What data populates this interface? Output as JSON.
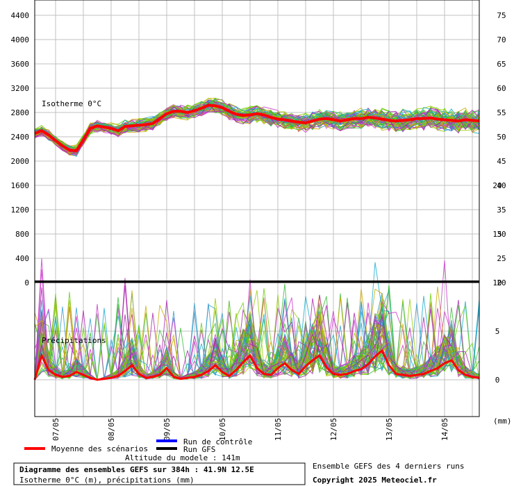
{
  "chart_data": [
    {
      "type": "line",
      "panel": "isotherm",
      "label": "Isotherme 0°C",
      "ylabel_left_ticks": [
        "0",
        "400",
        "800",
        "1200",
        "1600",
        "2000",
        "2400",
        "2800",
        "3200",
        "3600",
        "4000",
        "4400"
      ],
      "ylabel_right_ticks": [
        "20",
        "25",
        "30",
        "35",
        "40",
        "45",
        "50",
        "55",
        "60",
        "65",
        "70",
        "75"
      ],
      "ylim": [
        0,
        4600
      ],
      "x_ticks": [
        "07/05",
        "08/05",
        "09/05",
        "10/05",
        "11/05",
        "12/05",
        "13/05",
        "14/05"
      ],
      "grid": true,
      "series": [
        {
          "name": "Moyenne des scénarios",
          "color": "#ff0000",
          "x": [
            0,
            6,
            12,
            18,
            24,
            30,
            36,
            42,
            48,
            54,
            60,
            66,
            72,
            78,
            84,
            90,
            96,
            102,
            108,
            114,
            120,
            126,
            132,
            138,
            144,
            150,
            156,
            162,
            168,
            174,
            180,
            186,
            192,
            198,
            204,
            210,
            216,
            222,
            228,
            234,
            240,
            246,
            252,
            258,
            264,
            270,
            276,
            282,
            288,
            294,
            300,
            306,
            312,
            318,
            324,
            330,
            336,
            342,
            348,
            354,
            360,
            366,
            372,
            378,
            384
          ],
          "values": [
            2450,
            2500,
            2430,
            2340,
            2250,
            2180,
            2170,
            2350,
            2540,
            2580,
            2560,
            2540,
            2500,
            2570,
            2580,
            2590,
            2600,
            2620,
            2700,
            2780,
            2820,
            2820,
            2800,
            2830,
            2870,
            2920,
            2910,
            2880,
            2820,
            2770,
            2750,
            2760,
            2780,
            2760,
            2720,
            2690,
            2680,
            2660,
            2640,
            2630,
            2660,
            2690,
            2700,
            2680,
            2660,
            2680,
            2700,
            2700,
            2720,
            2710,
            2690,
            2670,
            2660,
            2670,
            2680,
            2700,
            2700,
            2710,
            2690,
            2680,
            2670,
            2660,
            2680,
            2670,
            2660
          ]
        }
      ]
    },
    {
      "type": "line",
      "panel": "precipitation",
      "label": "Précipitations",
      "ylabel_right_ticks": [
        "0",
        "5",
        "10",
        "15",
        "20"
      ],
      "ylim": [
        -8,
        20
      ],
      "unit": "(mm)",
      "x_ticks": [
        "07/05",
        "08/05",
        "09/05",
        "10/05",
        "11/05",
        "12/05",
        "13/05",
        "14/05"
      ],
      "grid": true,
      "series": [
        {
          "name": "Moyenne des scénarios",
          "color": "#ff0000",
          "x": [
            0,
            6,
            12,
            18,
            24,
            30,
            36,
            42,
            48,
            54,
            60,
            66,
            72,
            78,
            84,
            90,
            96,
            102,
            108,
            114,
            120,
            126,
            132,
            138,
            144,
            150,
            156,
            162,
            168,
            174,
            180,
            186,
            192,
            198,
            204,
            210,
            216,
            222,
            228,
            234,
            240,
            246,
            252,
            258,
            264,
            270,
            276,
            282,
            288,
            294,
            300,
            306,
            312,
            318,
            324,
            330,
            336,
            342,
            348,
            354,
            360,
            366,
            372,
            378,
            384
          ],
          "values": [
            0,
            2.5,
            1,
            0.5,
            0.3,
            0.4,
            0.8,
            0.5,
            0.2,
            0,
            0.1,
            0.2,
            0.4,
            0.9,
            1.5,
            0.6,
            0.2,
            0.3,
            0.5,
            1.2,
            0.3,
            0.1,
            0.2,
            0.3,
            0.5,
            0.9,
            1.5,
            0.8,
            0.4,
            1,
            1.8,
            2.5,
            1.2,
            0.6,
            0.5,
            1.2,
            1.7,
            1.0,
            0.6,
            1.4,
            2.0,
            2.5,
            1.3,
            0.6,
            0.5,
            0.6,
            0.9,
            1.1,
            1.6,
            2.4,
            3.0,
            1.5,
            0.6,
            0.5,
            0.4,
            0.5,
            0.6,
            0.9,
            1.2,
            1.7,
            2.0,
            1.0,
            0.5,
            0.3,
            0.2
          ]
        }
      ]
    }
  ],
  "legend": {
    "mean_label": "Moyenne des scénarios",
    "control_label": "Run de contrôle",
    "gfs_label": "Run GFS",
    "mean_color": "#ff0000",
    "control_color": "#0000ff",
    "gfs_color": "#000000"
  },
  "altitude_text": "Altitude du modele : 141m",
  "title_line1": "Diagramme des ensembles GEFS sur 384h : 41.9N 12.5E",
  "title_line2": "Isotherme 0°C (m), précipitations (mm)",
  "info_line1": "Ensemble GEFS des 4 derniers runs",
  "info_line2": "Copyright 2025 Meteociel.fr",
  "colors": {
    "ensemble": [
      "#66cc00",
      "#33bb33",
      "#cc33cc",
      "#aa22aa",
      "#3399cc",
      "#11aacc",
      "#ccaa00",
      "#99cc00"
    ],
    "grid": "#c0c0c0",
    "axis": "#000000"
  }
}
